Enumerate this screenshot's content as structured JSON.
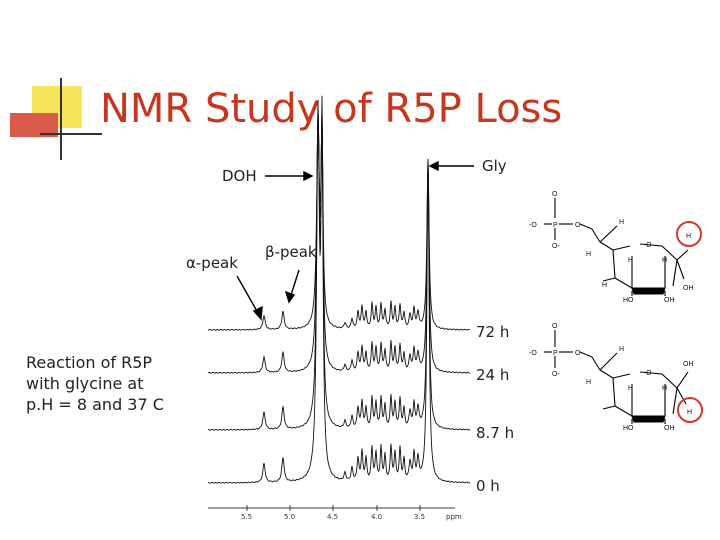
{
  "slide": {
    "title": "NMR Study of R5P Loss",
    "caption": "Reaction of R5P\nwith glycine at\np.H = 8 and 37 C"
  },
  "annotations": {
    "doh": "DOH",
    "gly": "Gly",
    "alpha_peak": "α-peak",
    "beta_peak": "β-peak"
  },
  "spectra": {
    "times": [
      "72 h",
      "24 h",
      "8.7 h",
      "0 h"
    ],
    "axis_ticks": [
      "5.5",
      "5.0",
      "4.5",
      "4.0",
      "3.5"
    ],
    "axis_unit": "ppm"
  },
  "structures": {
    "top": {
      "highlight": "H",
      "labels": [
        "O",
        "-O",
        "P",
        "O",
        "O-",
        "H",
        "O",
        "H",
        "H",
        "H",
        "H",
        "HO",
        "OH",
        "H",
        "OH"
      ]
    },
    "bottom": {
      "highlight": "H",
      "labels": [
        "O",
        "-O",
        "P",
        "O",
        "O-",
        "H",
        "O",
        "OH",
        "H",
        "H",
        "H",
        "HO",
        "OH",
        "H"
      ]
    }
  },
  "colors": {
    "title": "#c8361d",
    "accent_yellow": "#f5e55a",
    "accent_red": "#d95a4a",
    "highlight_circle": "#d03a2a"
  }
}
